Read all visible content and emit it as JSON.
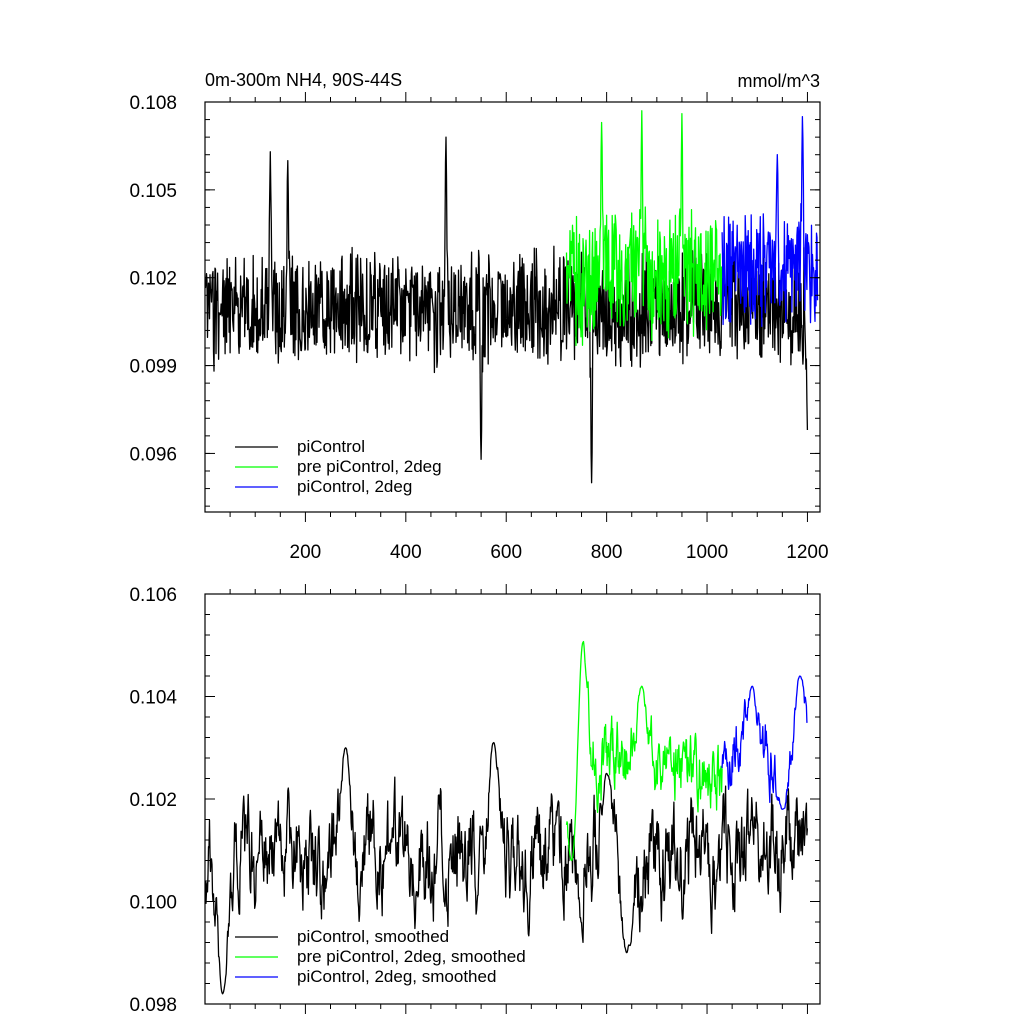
{
  "chart_data": [
    {
      "type": "line",
      "title_left": "0m-300m NH4, 90S-44S",
      "title_right": "mmol/m^3",
      "xlim": [
        0,
        1225
      ],
      "ylim": [
        0.094,
        0.108
      ],
      "xticks": [
        200,
        400,
        600,
        800,
        1000,
        1200
      ],
      "xtick_labels": [
        "200",
        "400",
        "600",
        "800",
        "1000",
        "1200"
      ],
      "yticks": [
        0.096,
        0.099,
        0.102,
        0.105,
        0.108
      ],
      "ytick_labels": [
        "0.096",
        "0.099",
        "0.102",
        "0.105",
        "0.108"
      ],
      "legend_position": "lower-left",
      "series": [
        {
          "name": "piControl",
          "color": "#000000",
          "x_start": 1,
          "x_end": 1200,
          "baseline": 0.1009,
          "baseline_end": 0.101,
          "amplitude": 0.0022,
          "peaks": [
            [
              130,
              0.1063
            ],
            [
              165,
              0.106
            ],
            [
              480,
              0.1068
            ],
            [
              770,
              0.095
            ],
            [
              550,
              0.0958
            ],
            [
              1200,
              0.0968
            ]
          ]
        },
        {
          "name": "pre piControl, 2deg",
          "color": "#00ff00",
          "x_start": 720,
          "x_end": 1030,
          "baseline": 0.102,
          "baseline_end": 0.1022,
          "amplitude": 0.0025,
          "peaks": [
            [
              870,
              0.1077
            ],
            [
              790,
              0.1073
            ],
            [
              950,
              0.1076
            ]
          ]
        },
        {
          "name": "piControl, 2deg",
          "color": "#0000ff",
          "x_start": 1030,
          "x_end": 1220,
          "baseline": 0.1022,
          "baseline_end": 0.1023,
          "amplitude": 0.0022,
          "peaks": [
            [
              1190,
              0.1075
            ],
            [
              1140,
              0.1062
            ]
          ]
        }
      ]
    },
    {
      "type": "line",
      "xlim": [
        0,
        1225
      ],
      "ylim": [
        0.098,
        0.106
      ],
      "xticks": [
        200,
        400,
        600,
        800,
        1000,
        1200
      ],
      "yticks": [
        0.098,
        0.1,
        0.102,
        0.104,
        0.106
      ],
      "ytick_labels": [
        "0.098",
        "0.100",
        "0.102",
        "0.104",
        "0.106"
      ],
      "legend_position": "lower-left",
      "series": [
        {
          "name": "piControl, smoothed",
          "color": "#000000",
          "x_start": 1,
          "x_end": 1200,
          "baseline": 0.1009,
          "baseline_end": 0.1009,
          "amplitude": 0.0011,
          "peaks": [
            [
              35,
              0.0982
            ],
            [
              280,
              0.103
            ],
            [
              575,
              0.1031
            ],
            [
              840,
              0.099
            ],
            [
              800,
              0.1025
            ]
          ]
        },
        {
          "name": "pre piControl, 2deg, smoothed",
          "color": "#00ff00",
          "x_start": 720,
          "x_end": 1030,
          "baseline": 0.1029,
          "baseline_end": 0.1024,
          "amplitude": 0.0008,
          "peaks": [
            [
              750,
              0.1055
            ],
            [
              730,
              0.1008
            ],
            [
              870,
              0.1042
            ]
          ]
        },
        {
          "name": "piControl, 2deg, smoothed",
          "color": "#0000ff",
          "x_start": 1030,
          "x_end": 1200,
          "baseline": 0.1029,
          "baseline_end": 0.103,
          "amplitude": 0.0008,
          "peaks": [
            [
              1185,
              0.1044
            ],
            [
              1090,
              0.1042
            ],
            [
              1150,
              0.1018
            ]
          ]
        }
      ]
    }
  ]
}
